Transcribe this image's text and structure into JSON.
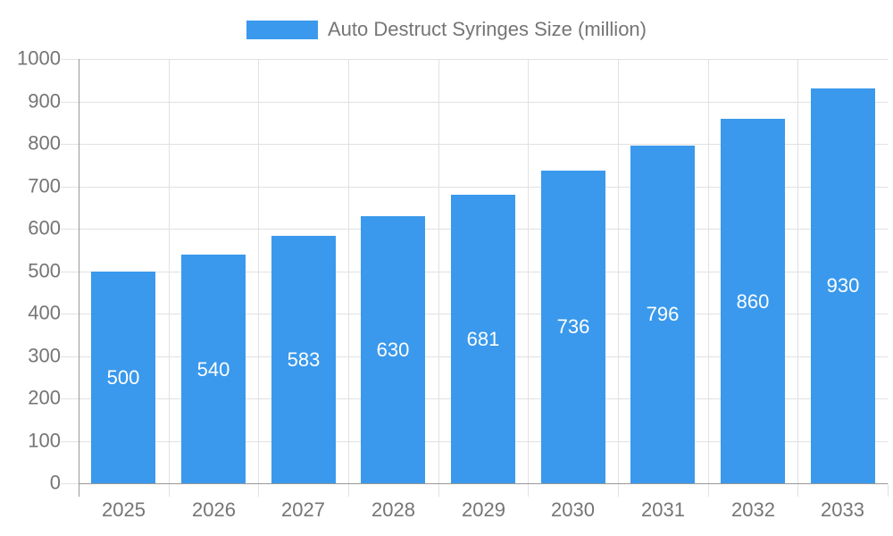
{
  "legend": {
    "label": "Auto Destruct Syringes Size (million)"
  },
  "chart_data": {
    "type": "bar",
    "title": "Auto Destruct Syringes Size (million)",
    "categories": [
      "2025",
      "2026",
      "2027",
      "2028",
      "2029",
      "2030",
      "2031",
      "2032",
      "2033"
    ],
    "values": [
      500,
      540,
      583,
      630,
      681,
      736,
      796,
      860,
      930
    ],
    "xlabel": "",
    "ylabel": "",
    "ylim": [
      0,
      1000
    ],
    "ytick_step": 100,
    "ytick_labels": [
      "0",
      "100",
      "200",
      "300",
      "400",
      "500",
      "600",
      "700",
      "800",
      "900",
      "1000"
    ],
    "grid": true,
    "legend_position": "top-center",
    "value_labels_position": "inside-center"
  },
  "colors": {
    "bar": "#3A99EC",
    "value_label": "#ffffff",
    "grid": "#e1e1e1",
    "axis": "#999999",
    "text": "#757575",
    "background": "#ffffff"
  }
}
